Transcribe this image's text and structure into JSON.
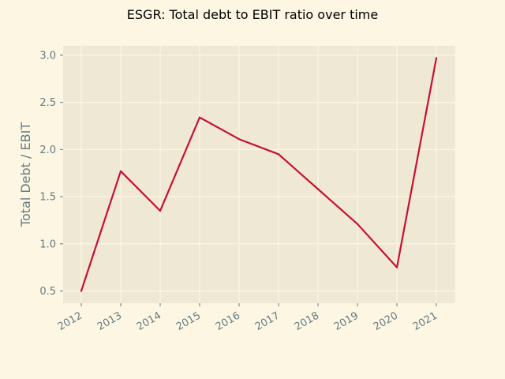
{
  "chart_data": {
    "type": "line",
    "title": "ESGR: Total debt to EBIT ratio over time",
    "xlabel": "",
    "ylabel": "Total Debt / EBIT",
    "categories": [
      "2012",
      "2013",
      "2014",
      "2015",
      "2016",
      "2017",
      "2018",
      "2019",
      "2020",
      "2021"
    ],
    "series": [
      {
        "values": [
          0.5,
          1.77,
          1.35,
          2.34,
          2.11,
          1.95,
          1.58,
          1.21,
          0.75,
          2.97
        ]
      }
    ],
    "ylim": [
      0.37,
      3.1
    ],
    "yticks": [
      "0.5",
      "1.0",
      "1.5",
      "2.0",
      "2.5",
      "3.0"
    ],
    "grid": true,
    "legend": "none",
    "colors": {
      "line": "#c8102e",
      "plot_background": "#eee8d5",
      "figure_background": "#fdf6e3",
      "grid": "#fdf6e3",
      "tick_text": "#657b83"
    }
  }
}
